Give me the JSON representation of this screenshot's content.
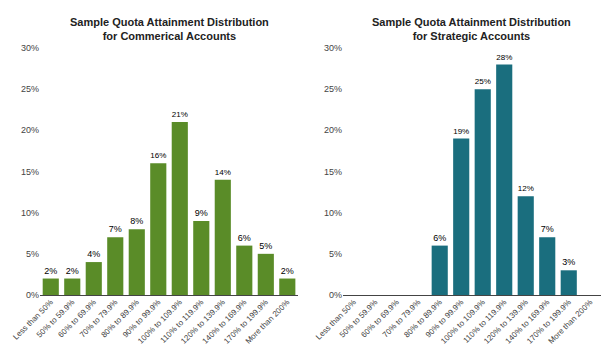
{
  "chart_data": [
    {
      "type": "bar",
      "title": "Sample Quota Attainment Distribution\nfor Commerical Accounts",
      "categories": [
        "Less than 50%",
        "50% to 59.9%",
        "60% to 69.9%",
        "70% to 79.9%",
        "80% to 89.9%",
        "90% to 99.9%",
        "100% to 109.9%",
        "110% to 119.9%",
        "120% to 139.9%",
        "140% to 169.9%",
        "170% to 199.9%",
        "More than 200%"
      ],
      "values": [
        2,
        2,
        4,
        7,
        8,
        16,
        21,
        9,
        14,
        6,
        5,
        2
      ],
      "value_labels": [
        "2%",
        "2%",
        "4%",
        "7%",
        "8%",
        "16%",
        "21%",
        "9%",
        "14%",
        "6%",
        "5%",
        "2%"
      ],
      "color": "#5a8c28",
      "ylim": [
        0,
        30
      ],
      "yticks": [
        {
          "value": 0,
          "label": "0%"
        },
        {
          "value": 5,
          "label": "5%"
        },
        {
          "value": 10,
          "label": "10%"
        },
        {
          "value": 15,
          "label": "15%"
        },
        {
          "value": 20,
          "label": "20%"
        },
        {
          "value": 25,
          "label": "25%"
        },
        {
          "value": 30,
          "label": "30%"
        }
      ],
      "data_labels": true,
      "grid": false
    },
    {
      "type": "bar",
      "title": "Sample Quota Attainment Distribution\nfor Strategic Accounts",
      "categories": [
        "Less than 50%",
        "50% to 59.9%",
        "60% to 69.9%",
        "70% to 79.9%",
        "80% to 89.9%",
        "90% to 99.9%",
        "100% to 109.9%",
        "110% to 119.9%",
        "120% to 139.9%",
        "140% to 169.9%",
        "170% to 199.9%",
        "More than 200%"
      ],
      "values": [
        0,
        0,
        0,
        0,
        6,
        19,
        25,
        28,
        12,
        7,
        3,
        0
      ],
      "value_labels": [
        null,
        null,
        null,
        null,
        "6%",
        "19%",
        "25%",
        "28%",
        "12%",
        "7%",
        "3%",
        null
      ],
      "color": "#1a6e7e",
      "ylim": [
        0,
        30
      ],
      "yticks": [
        {
          "value": 0,
          "label": "0%"
        },
        {
          "value": 5,
          "label": "5%"
        },
        {
          "value": 10,
          "label": "10%"
        },
        {
          "value": 15,
          "label": "15%"
        },
        {
          "value": 20,
          "label": "20%"
        },
        {
          "value": 25,
          "label": "25%"
        },
        {
          "value": 30,
          "label": "30%"
        }
      ],
      "data_labels": true,
      "grid": false
    }
  ]
}
